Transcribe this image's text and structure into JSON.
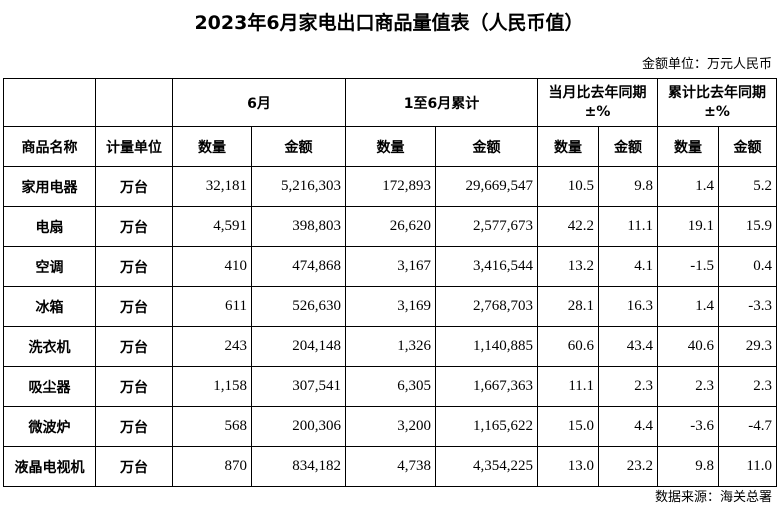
{
  "title": "2023年6月家电出口商品量值表（人民币值）",
  "unit_note": "金额单位：万元人民币",
  "header": {
    "group_month": "6月",
    "group_cumulative": "1至6月累计",
    "group_month_yoy_line1": "当月比去年同期",
    "group_month_yoy_line2": "±%",
    "group_cum_yoy_line1": "累计比去年同期",
    "group_cum_yoy_line2": "±%",
    "col_name": "商品名称",
    "col_unit": "计量单位",
    "col_qty": "数量",
    "col_amount": "金额"
  },
  "rows": [
    {
      "name": "家用电器",
      "unit": "万台",
      "m_qty": "32,181",
      "m_amt": "5,216,303",
      "c_qty": "172,893",
      "c_amt": "29,669,547",
      "my_qty": "10.5",
      "my_amt": "9.8",
      "cy_qty": "1.4",
      "cy_amt": "5.2"
    },
    {
      "name": "电扇",
      "unit": "万台",
      "m_qty": "4,591",
      "m_amt": "398,803",
      "c_qty": "26,620",
      "c_amt": "2,577,673",
      "my_qty": "42.2",
      "my_amt": "11.1",
      "cy_qty": "19.1",
      "cy_amt": "15.9"
    },
    {
      "name": "空调",
      "unit": "万台",
      "m_qty": "410",
      "m_amt": "474,868",
      "c_qty": "3,167",
      "c_amt": "3,416,544",
      "my_qty": "13.2",
      "my_amt": "4.1",
      "cy_qty": "-1.5",
      "cy_amt": "0.4"
    },
    {
      "name": "冰箱",
      "unit": "万台",
      "m_qty": "611",
      "m_amt": "526,630",
      "c_qty": "3,169",
      "c_amt": "2,768,703",
      "my_qty": "28.1",
      "my_amt": "16.3",
      "cy_qty": "1.4",
      "cy_amt": "-3.3"
    },
    {
      "name": "洗衣机",
      "unit": "万台",
      "m_qty": "243",
      "m_amt": "204,148",
      "c_qty": "1,326",
      "c_amt": "1,140,885",
      "my_qty": "60.6",
      "my_amt": "43.4",
      "cy_qty": "40.6",
      "cy_amt": "29.3"
    },
    {
      "name": "吸尘器",
      "unit": "万台",
      "m_qty": "1,158",
      "m_amt": "307,541",
      "c_qty": "6,305",
      "c_amt": "1,667,363",
      "my_qty": "11.1",
      "my_amt": "2.3",
      "cy_qty": "2.3",
      "cy_amt": "2.3"
    },
    {
      "name": "微波炉",
      "unit": "万台",
      "m_qty": "568",
      "m_amt": "200,306",
      "c_qty": "3,200",
      "c_amt": "1,165,622",
      "my_qty": "15.0",
      "my_amt": "4.4",
      "cy_qty": "-3.6",
      "cy_amt": "-4.7"
    },
    {
      "name": "液晶电视机",
      "unit": "万台",
      "m_qty": "870",
      "m_amt": "834,182",
      "c_qty": "4,738",
      "c_amt": "4,354,225",
      "my_qty": "13.0",
      "my_amt": "23.2",
      "cy_qty": "9.8",
      "cy_amt": "11.0"
    }
  ],
  "source": "数据来源：海关总署"
}
